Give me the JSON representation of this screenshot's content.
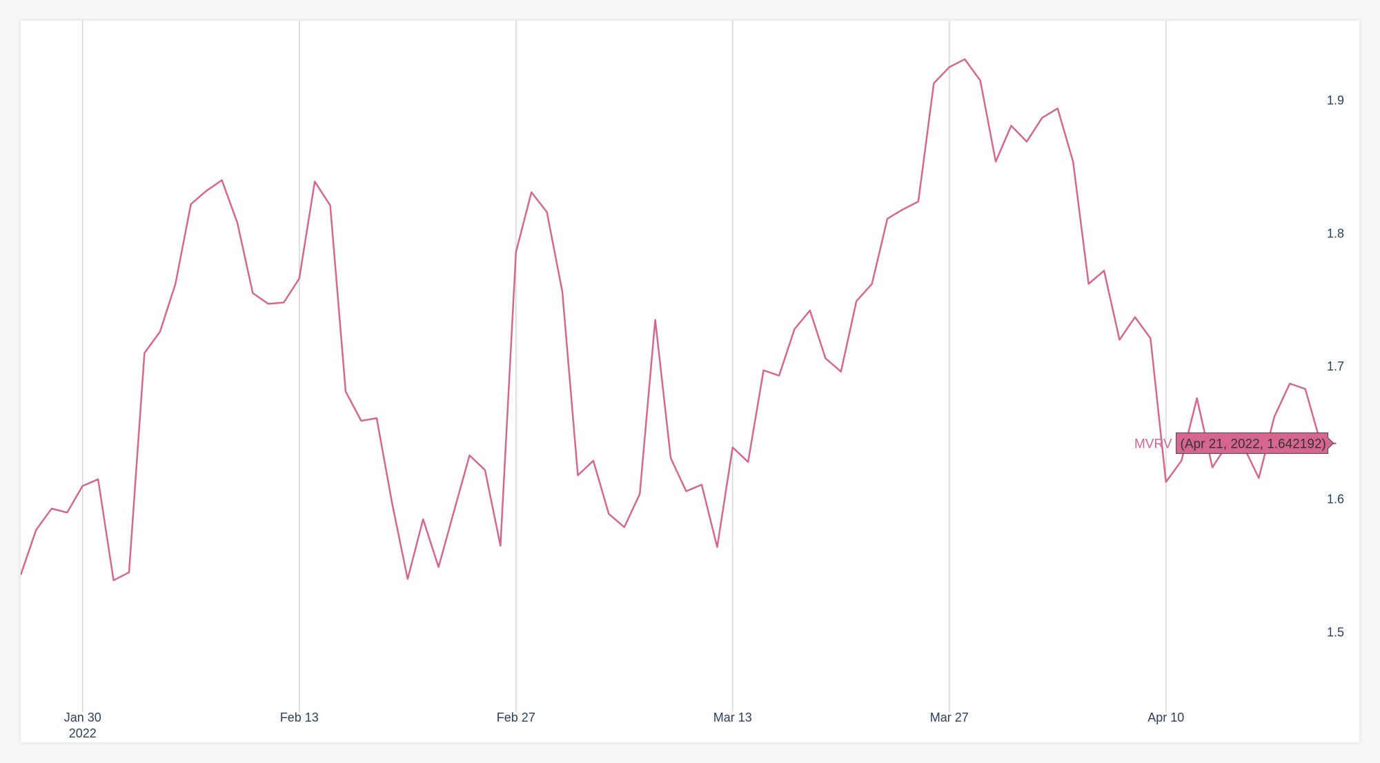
{
  "chart_data": {
    "type": "line",
    "title": "",
    "xlabel": "",
    "ylabel": "",
    "x_range": [
      "2022-01-26",
      "2022-04-21"
    ],
    "ylim": [
      1.44,
      1.96
    ],
    "y_axis_side": "right",
    "grid": {
      "x": true,
      "y": false
    },
    "x_ticks": [
      {
        "date": "2022-01-30",
        "label": "Jan 30",
        "sublabel": "2022"
      },
      {
        "date": "2022-02-13",
        "label": "Feb 13",
        "sublabel": ""
      },
      {
        "date": "2022-02-27",
        "label": "Feb 27",
        "sublabel": ""
      },
      {
        "date": "2022-03-13",
        "label": "Mar 13",
        "sublabel": ""
      },
      {
        "date": "2022-03-27",
        "label": "Mar 27",
        "sublabel": ""
      },
      {
        "date": "2022-04-10",
        "label": "Apr 10",
        "sublabel": ""
      }
    ],
    "y_ticks": [
      {
        "value": 1.5,
        "label": "1.5"
      },
      {
        "value": 1.6,
        "label": "1.6"
      },
      {
        "value": 1.7,
        "label": "1.7"
      },
      {
        "value": 1.8,
        "label": "1.8"
      },
      {
        "value": 1.9,
        "label": "1.9"
      }
    ],
    "series": [
      {
        "name": "MVRV",
        "color": "#d6668f",
        "x": [
          "2022-01-26",
          "2022-01-27",
          "2022-01-28",
          "2022-01-29",
          "2022-01-30",
          "2022-01-31",
          "2022-02-01",
          "2022-02-02",
          "2022-02-03",
          "2022-02-04",
          "2022-02-05",
          "2022-02-06",
          "2022-02-07",
          "2022-02-08",
          "2022-02-09",
          "2022-02-10",
          "2022-02-11",
          "2022-02-12",
          "2022-02-13",
          "2022-02-14",
          "2022-02-15",
          "2022-02-16",
          "2022-02-17",
          "2022-02-18",
          "2022-02-19",
          "2022-02-20",
          "2022-02-21",
          "2022-02-22",
          "2022-02-23",
          "2022-02-24",
          "2022-02-25",
          "2022-02-26",
          "2022-02-27",
          "2022-02-28",
          "2022-03-01",
          "2022-03-02",
          "2022-03-03",
          "2022-03-04",
          "2022-03-05",
          "2022-03-06",
          "2022-03-07",
          "2022-03-08",
          "2022-03-09",
          "2022-03-10",
          "2022-03-11",
          "2022-03-12",
          "2022-03-13",
          "2022-03-14",
          "2022-03-15",
          "2022-03-16",
          "2022-03-17",
          "2022-03-18",
          "2022-03-19",
          "2022-03-20",
          "2022-03-21",
          "2022-03-22",
          "2022-03-23",
          "2022-03-24",
          "2022-03-25",
          "2022-03-26",
          "2022-03-27",
          "2022-03-28",
          "2022-03-29",
          "2022-03-30",
          "2022-03-31",
          "2022-04-01",
          "2022-04-02",
          "2022-04-03",
          "2022-04-04",
          "2022-04-05",
          "2022-04-06",
          "2022-04-07",
          "2022-04-08",
          "2022-04-09",
          "2022-04-10",
          "2022-04-11",
          "2022-04-12",
          "2022-04-13",
          "2022-04-14",
          "2022-04-15",
          "2022-04-16",
          "2022-04-17",
          "2022-04-18",
          "2022-04-19",
          "2022-04-20",
          "2022-04-21"
        ],
        "values": [
          1.543,
          1.577,
          1.593,
          1.59,
          1.61,
          1.615,
          1.539,
          1.545,
          1.71,
          1.726,
          1.762,
          1.822,
          1.832,
          1.84,
          1.808,
          1.755,
          1.747,
          1.748,
          1.766,
          1.839,
          1.821,
          1.681,
          1.659,
          1.661,
          1.597,
          1.54,
          1.585,
          1.549,
          1.591,
          1.633,
          1.622,
          1.565,
          1.786,
          1.831,
          1.816,
          1.756,
          1.618,
          1.629,
          1.589,
          1.579,
          1.604,
          1.735,
          1.631,
          1.606,
          1.611,
          1.564,
          1.639,
          1.628,
          1.697,
          1.693,
          1.728,
          1.742,
          1.706,
          1.696,
          1.749,
          1.762,
          1.811,
          1.818,
          1.824,
          1.913,
          1.925,
          1.931,
          1.915,
          1.854,
          1.881,
          1.869,
          1.887,
          1.894,
          1.854,
          1.762,
          1.772,
          1.72,
          1.737,
          1.721,
          1.613,
          1.629,
          1.676,
          1.624,
          1.642,
          1.64,
          1.616,
          1.662,
          1.687,
          1.683,
          1.642,
          1.642
        ]
      }
    ],
    "hover": {
      "series_name": "MVRV",
      "text": "(Apr 21, 2022, 1.642192)",
      "x": "2022-04-21",
      "y": 1.642192
    }
  }
}
